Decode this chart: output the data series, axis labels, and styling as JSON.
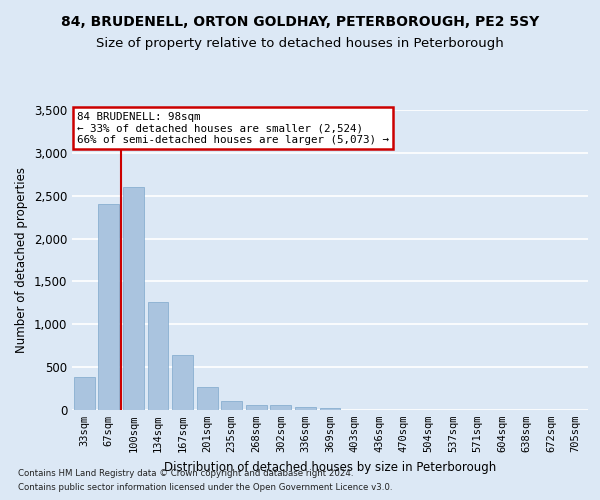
{
  "title1": "84, BRUDENELL, ORTON GOLDHAY, PETERBOROUGH, PE2 5SY",
  "title2": "Size of property relative to detached houses in Peterborough",
  "xlabel": "Distribution of detached houses by size in Peterborough",
  "ylabel": "Number of detached properties",
  "footer1": "Contains HM Land Registry data © Crown copyright and database right 2024.",
  "footer2": "Contains public sector information licensed under the Open Government Licence v3.0.",
  "categories": [
    "33sqm",
    "67sqm",
    "100sqm",
    "134sqm",
    "167sqm",
    "201sqm",
    "235sqm",
    "268sqm",
    "302sqm",
    "336sqm",
    "369sqm",
    "403sqm",
    "436sqm",
    "470sqm",
    "504sqm",
    "537sqm",
    "571sqm",
    "604sqm",
    "638sqm",
    "672sqm",
    "705sqm"
  ],
  "values": [
    390,
    2400,
    2600,
    1260,
    640,
    270,
    110,
    60,
    55,
    35,
    20,
    0,
    0,
    0,
    0,
    0,
    0,
    0,
    0,
    0,
    0
  ],
  "bar_color": "#aac4df",
  "bar_edge_color": "#7ea8cc",
  "vline_color": "#cc0000",
  "vline_x_index": 1.5,
  "annotation_title": "84 BRUDENELL: 98sqm",
  "annotation_line2": "← 33% of detached houses are smaller (2,524)",
  "annotation_line3": "66% of semi-detached houses are larger (5,073) →",
  "annotation_box_color": "#cc0000",
  "ylim": [
    0,
    3500
  ],
  "yticks": [
    0,
    500,
    1000,
    1500,
    2000,
    2500,
    3000,
    3500
  ],
  "background_color": "#dce8f5",
  "plot_bg_color": "#dce8f5",
  "grid_color": "#ffffff",
  "title1_fontsize": 10,
  "title2_fontsize": 9.5
}
